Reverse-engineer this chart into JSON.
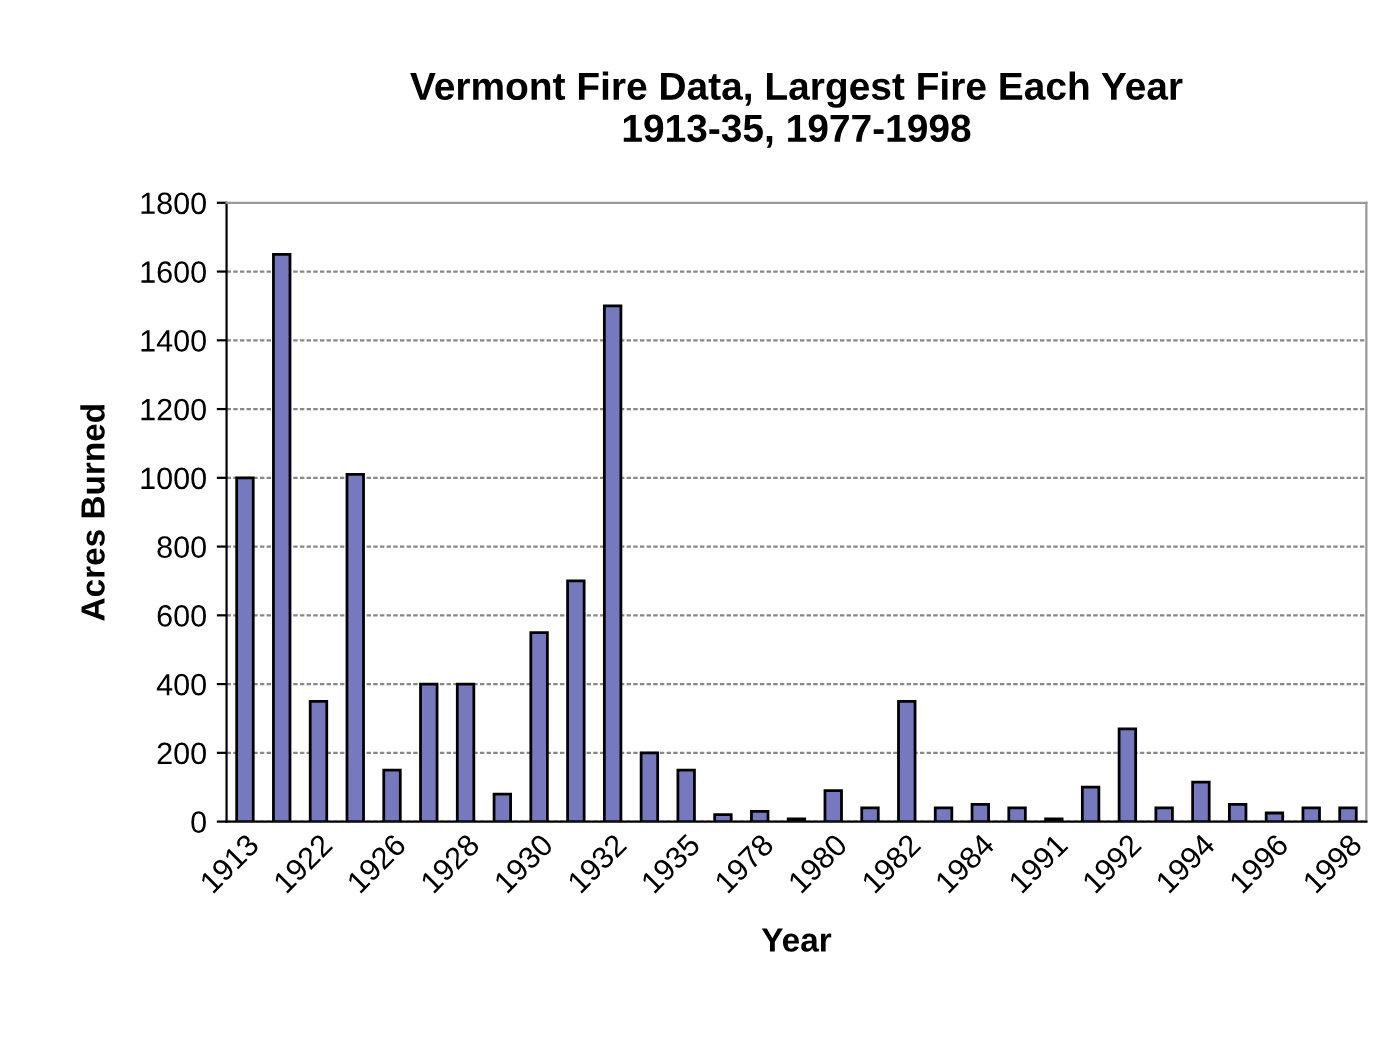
{
  "chart_data": {
    "type": "bar",
    "title": "Vermont Fire Data, Largest Fire Each Year\n1913-35, 1977-1998",
    "xlabel": "Year",
    "ylabel": "Acres Burned",
    "categories": [
      "1913",
      null,
      "1922",
      null,
      "1926",
      null,
      "1928",
      null,
      "1930",
      null,
      "1932",
      null,
      "1935",
      null,
      "1978",
      null,
      "1980",
      null,
      "1982",
      null,
      "1984",
      null,
      "1991",
      null,
      "1992",
      null,
      "1994",
      null,
      "1996",
      null,
      "1998"
    ],
    "values": [
      1000,
      1650,
      350,
      1010,
      150,
      400,
      400,
      80,
      550,
      700,
      1500,
      200,
      150,
      20,
      30,
      8,
      90,
      40,
      350,
      40,
      50,
      40,
      8,
      100,
      270,
      40,
      115,
      50,
      25,
      40,
      40
    ],
    "color": "#7679bd",
    "ylim": [
      0,
      1800
    ],
    "yticks": [
      0,
      200,
      400,
      600,
      800,
      1000,
      1200,
      1400,
      1600,
      1800
    ],
    "grid": "y"
  }
}
